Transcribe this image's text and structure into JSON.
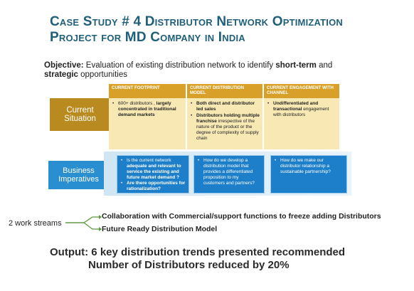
{
  "title": {
    "line1": "Case Study # 4 Distributor Network Optimization",
    "line2": "Project for MD Company in India"
  },
  "objective": {
    "label": "Objective:",
    "text1": " Evaluation of existing distribution network to identify ",
    "bold1": "short-term",
    "text2": " and",
    "bold2": "strategic",
    "text3": " opportunities"
  },
  "rows": {
    "current_situation": "Current Situation",
    "business_imperatives": "Business Imperatives"
  },
  "columns": [
    {
      "header": "Current Footprint",
      "items": [
        {
          "normal": "600+ distributors , ",
          "bold": "largely concentrated in traditional demand markets"
        }
      ],
      "imperative": [
        {
          "normal": "Is the current network ",
          "bold": "adequate and relevant to service the existing and future market demand ?"
        },
        {
          "normal": "",
          "bold": "Are there opportunities for rationalization?"
        }
      ]
    },
    {
      "header": "Current Distribution Model",
      "items": [
        {
          "normal": "",
          "bold": "Both direct and distributor led sales"
        },
        {
          "normal": "",
          "bold": "Distributors holding multiple franchise",
          "after": " irrespective of the nature of the product or the degree of complexity of supply chain"
        }
      ],
      "imperative_text": "How do we develop a distribution model that provides a differentiated proposition to my customers and partners?"
    },
    {
      "header": "Current Engagement with Channel",
      "items": [
        {
          "normal": "",
          "bold": "Undifferentiated and transactional",
          "after": " engagement with distributors"
        }
      ],
      "imperative_text": "How do we make our distributor relationship a sustainable partnership?"
    }
  ],
  "work_streams": {
    "label": "2 work streams",
    "items": [
      "Collaboration with Commercial/support functions to freeze adding Distributors",
      "Future Ready Distribution Model"
    ]
  },
  "output": {
    "line1": "Output:  6 key distribution trends presented recommended",
    "line2": "Number of Distributors reduced by 20%"
  }
}
